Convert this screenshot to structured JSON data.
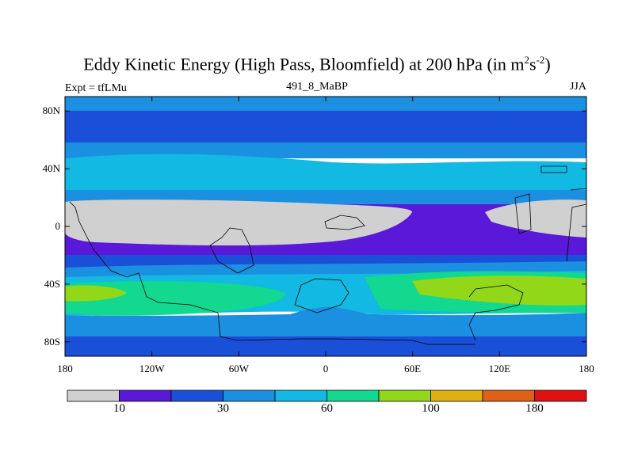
{
  "title": {
    "main": "Eddy Kinetic Energy (High Pass, Bloomfield) at 200 hPa (in m",
    "sup1": "2",
    "mid": "s",
    "sup2": "-2",
    "close": ")"
  },
  "subtitle": "491_8_MaBP",
  "experiment": "Expt = tfLMu",
  "season": "JJA",
  "axes": {
    "lat_labels": [
      "80N",
      "40N",
      "0",
      "40S",
      "80S"
    ],
    "lat_values": [
      80,
      40,
      0,
      -40,
      -80
    ],
    "lon_labels": [
      "180",
      "120W",
      "60W",
      "0",
      "60E",
      "120E",
      "180"
    ],
    "lon_values": [
      -180,
      -120,
      -60,
      0,
      60,
      120,
      180
    ]
  },
  "colorbar": {
    "colors": [
      "#d0d0d0",
      "#5a18d8",
      "#1a50d8",
      "#1b8fe0",
      "#12b9e2",
      "#12d890",
      "#92d818",
      "#e0b010",
      "#e06018",
      "#e01010"
    ],
    "labels": [
      "10",
      "30",
      "60",
      "100",
      "180"
    ],
    "label_boundary_index": [
      1,
      3,
      5,
      7,
      9
    ]
  }
}
